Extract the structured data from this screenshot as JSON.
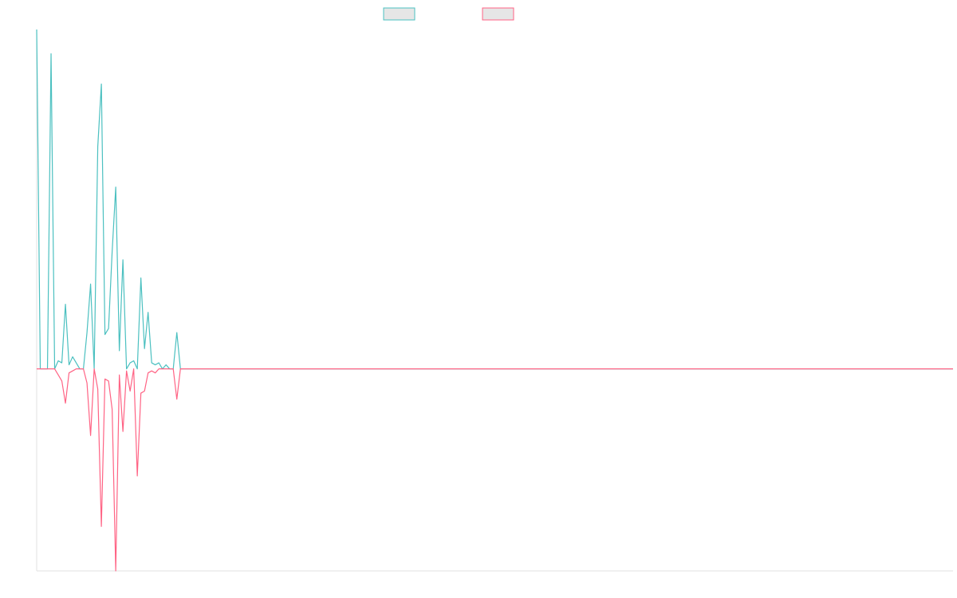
{
  "chart_data": {
    "type": "line",
    "ylim": [
      -100,
      168
    ],
    "series": [
      {
        "color": "#4bc0c0",
        "values": [
          168,
          0,
          0,
          0,
          156,
          0,
          4,
          3,
          32,
          2,
          6,
          3,
          0,
          0,
          18,
          42,
          0,
          110,
          141,
          17,
          20,
          58,
          90,
          9,
          54,
          0,
          3,
          4,
          0,
          45,
          10,
          28,
          3,
          2,
          3,
          0,
          2,
          0,
          0,
          18,
          0,
          0,
          0,
          0,
          0,
          0,
          0,
          0,
          0,
          0,
          0,
          0,
          0,
          0,
          0,
          0,
          0,
          0,
          0,
          0,
          0,
          0,
          0,
          0,
          0,
          0,
          0,
          0,
          0,
          0,
          0,
          0,
          0,
          0,
          0,
          0,
          0,
          0,
          0,
          0,
          0,
          0,
          0,
          0,
          0,
          0,
          0,
          0,
          0,
          0,
          0,
          0,
          0,
          0,
          0,
          0,
          0,
          0,
          0,
          0,
          0,
          0,
          0,
          0,
          0,
          0,
          0,
          0,
          0,
          0,
          0,
          0,
          0,
          0,
          0,
          0,
          0,
          0,
          0,
          0,
          0,
          0,
          0,
          0,
          0,
          0,
          0,
          0,
          0,
          0,
          0,
          0,
          0,
          0,
          0,
          0,
          0,
          0,
          0,
          0,
          0,
          0,
          0,
          0,
          0,
          0,
          0,
          0,
          0,
          0,
          0,
          0,
          0,
          0,
          0,
          0,
          0,
          0,
          0,
          0,
          0,
          0,
          0,
          0,
          0,
          0,
          0,
          0,
          0,
          0,
          0,
          0,
          0,
          0,
          0,
          0,
          0,
          0,
          0,
          0,
          0,
          0,
          0,
          0,
          0,
          0,
          0,
          0,
          0,
          0,
          0,
          0,
          0,
          0,
          0,
          0,
          0,
          0,
          0,
          0,
          0,
          0,
          0,
          0,
          0,
          0,
          0,
          0,
          0,
          0,
          0,
          0,
          0,
          0,
          0,
          0,
          0,
          0,
          0,
          0,
          0,
          0,
          0,
          0,
          0,
          0,
          0,
          0,
          0,
          0,
          0,
          0,
          0,
          0,
          0,
          0,
          0,
          0,
          0,
          0,
          0,
          0,
          0,
          0,
          0,
          0,
          0,
          0,
          0,
          0,
          0,
          0,
          0,
          0,
          0,
          0
        ]
      },
      {
        "color": "#ff6384",
        "values": [
          0,
          0,
          0,
          0,
          0,
          0,
          -3,
          -6,
          -17,
          -2,
          -1,
          0,
          0,
          0,
          -7,
          -33,
          0,
          -10,
          -78,
          -5,
          -6,
          -20,
          -100,
          -3,
          -31,
          -1,
          -11,
          0,
          -53,
          -12,
          -11,
          -2,
          -1,
          -2,
          0,
          0,
          0,
          0,
          0,
          -15,
          0,
          0,
          0,
          0,
          0,
          0,
          0,
          0,
          0,
          0,
          0,
          0,
          0,
          0,
          0,
          0,
          0,
          0,
          0,
          0,
          0,
          0,
          0,
          0,
          0,
          0,
          0,
          0,
          0,
          0,
          0,
          0,
          0,
          0,
          0,
          0,
          0,
          0,
          0,
          0,
          0,
          0,
          0,
          0,
          0,
          0,
          0,
          0,
          0,
          0,
          0,
          0,
          0,
          0,
          0,
          0,
          0,
          0,
          0,
          0,
          0,
          0,
          0,
          0,
          0,
          0,
          0,
          0,
          0,
          0,
          0,
          0,
          0,
          0,
          0,
          0,
          0,
          0,
          0,
          0,
          0,
          0,
          0,
          0,
          0,
          0,
          0,
          0,
          0,
          0,
          0,
          0,
          0,
          0,
          0,
          0,
          0,
          0,
          0,
          0,
          0,
          0,
          0,
          0,
          0,
          0,
          0,
          0,
          0,
          0,
          0,
          0,
          0,
          0,
          0,
          0,
          0,
          0,
          0,
          0,
          0,
          0,
          0,
          0,
          0,
          0,
          0,
          0,
          0,
          0,
          0,
          0,
          0,
          0,
          0,
          0,
          0,
          0,
          0,
          0,
          0,
          0,
          0,
          0,
          0,
          0,
          0,
          0,
          0,
          0,
          0,
          0,
          0,
          0,
          0,
          0,
          0,
          0,
          0,
          0,
          0,
          0,
          0,
          0,
          0,
          0,
          0,
          0,
          0,
          0,
          0,
          0,
          0,
          0,
          0,
          0,
          0,
          0,
          0,
          0,
          0,
          0,
          0,
          0,
          0,
          0,
          0,
          0,
          0,
          0,
          0,
          0,
          0,
          0,
          0,
          0,
          0,
          0,
          0,
          0,
          0,
          0,
          0,
          0,
          0,
          0,
          0,
          0,
          0,
          0,
          0,
          0,
          0,
          0,
          0,
          0
        ]
      }
    ]
  }
}
